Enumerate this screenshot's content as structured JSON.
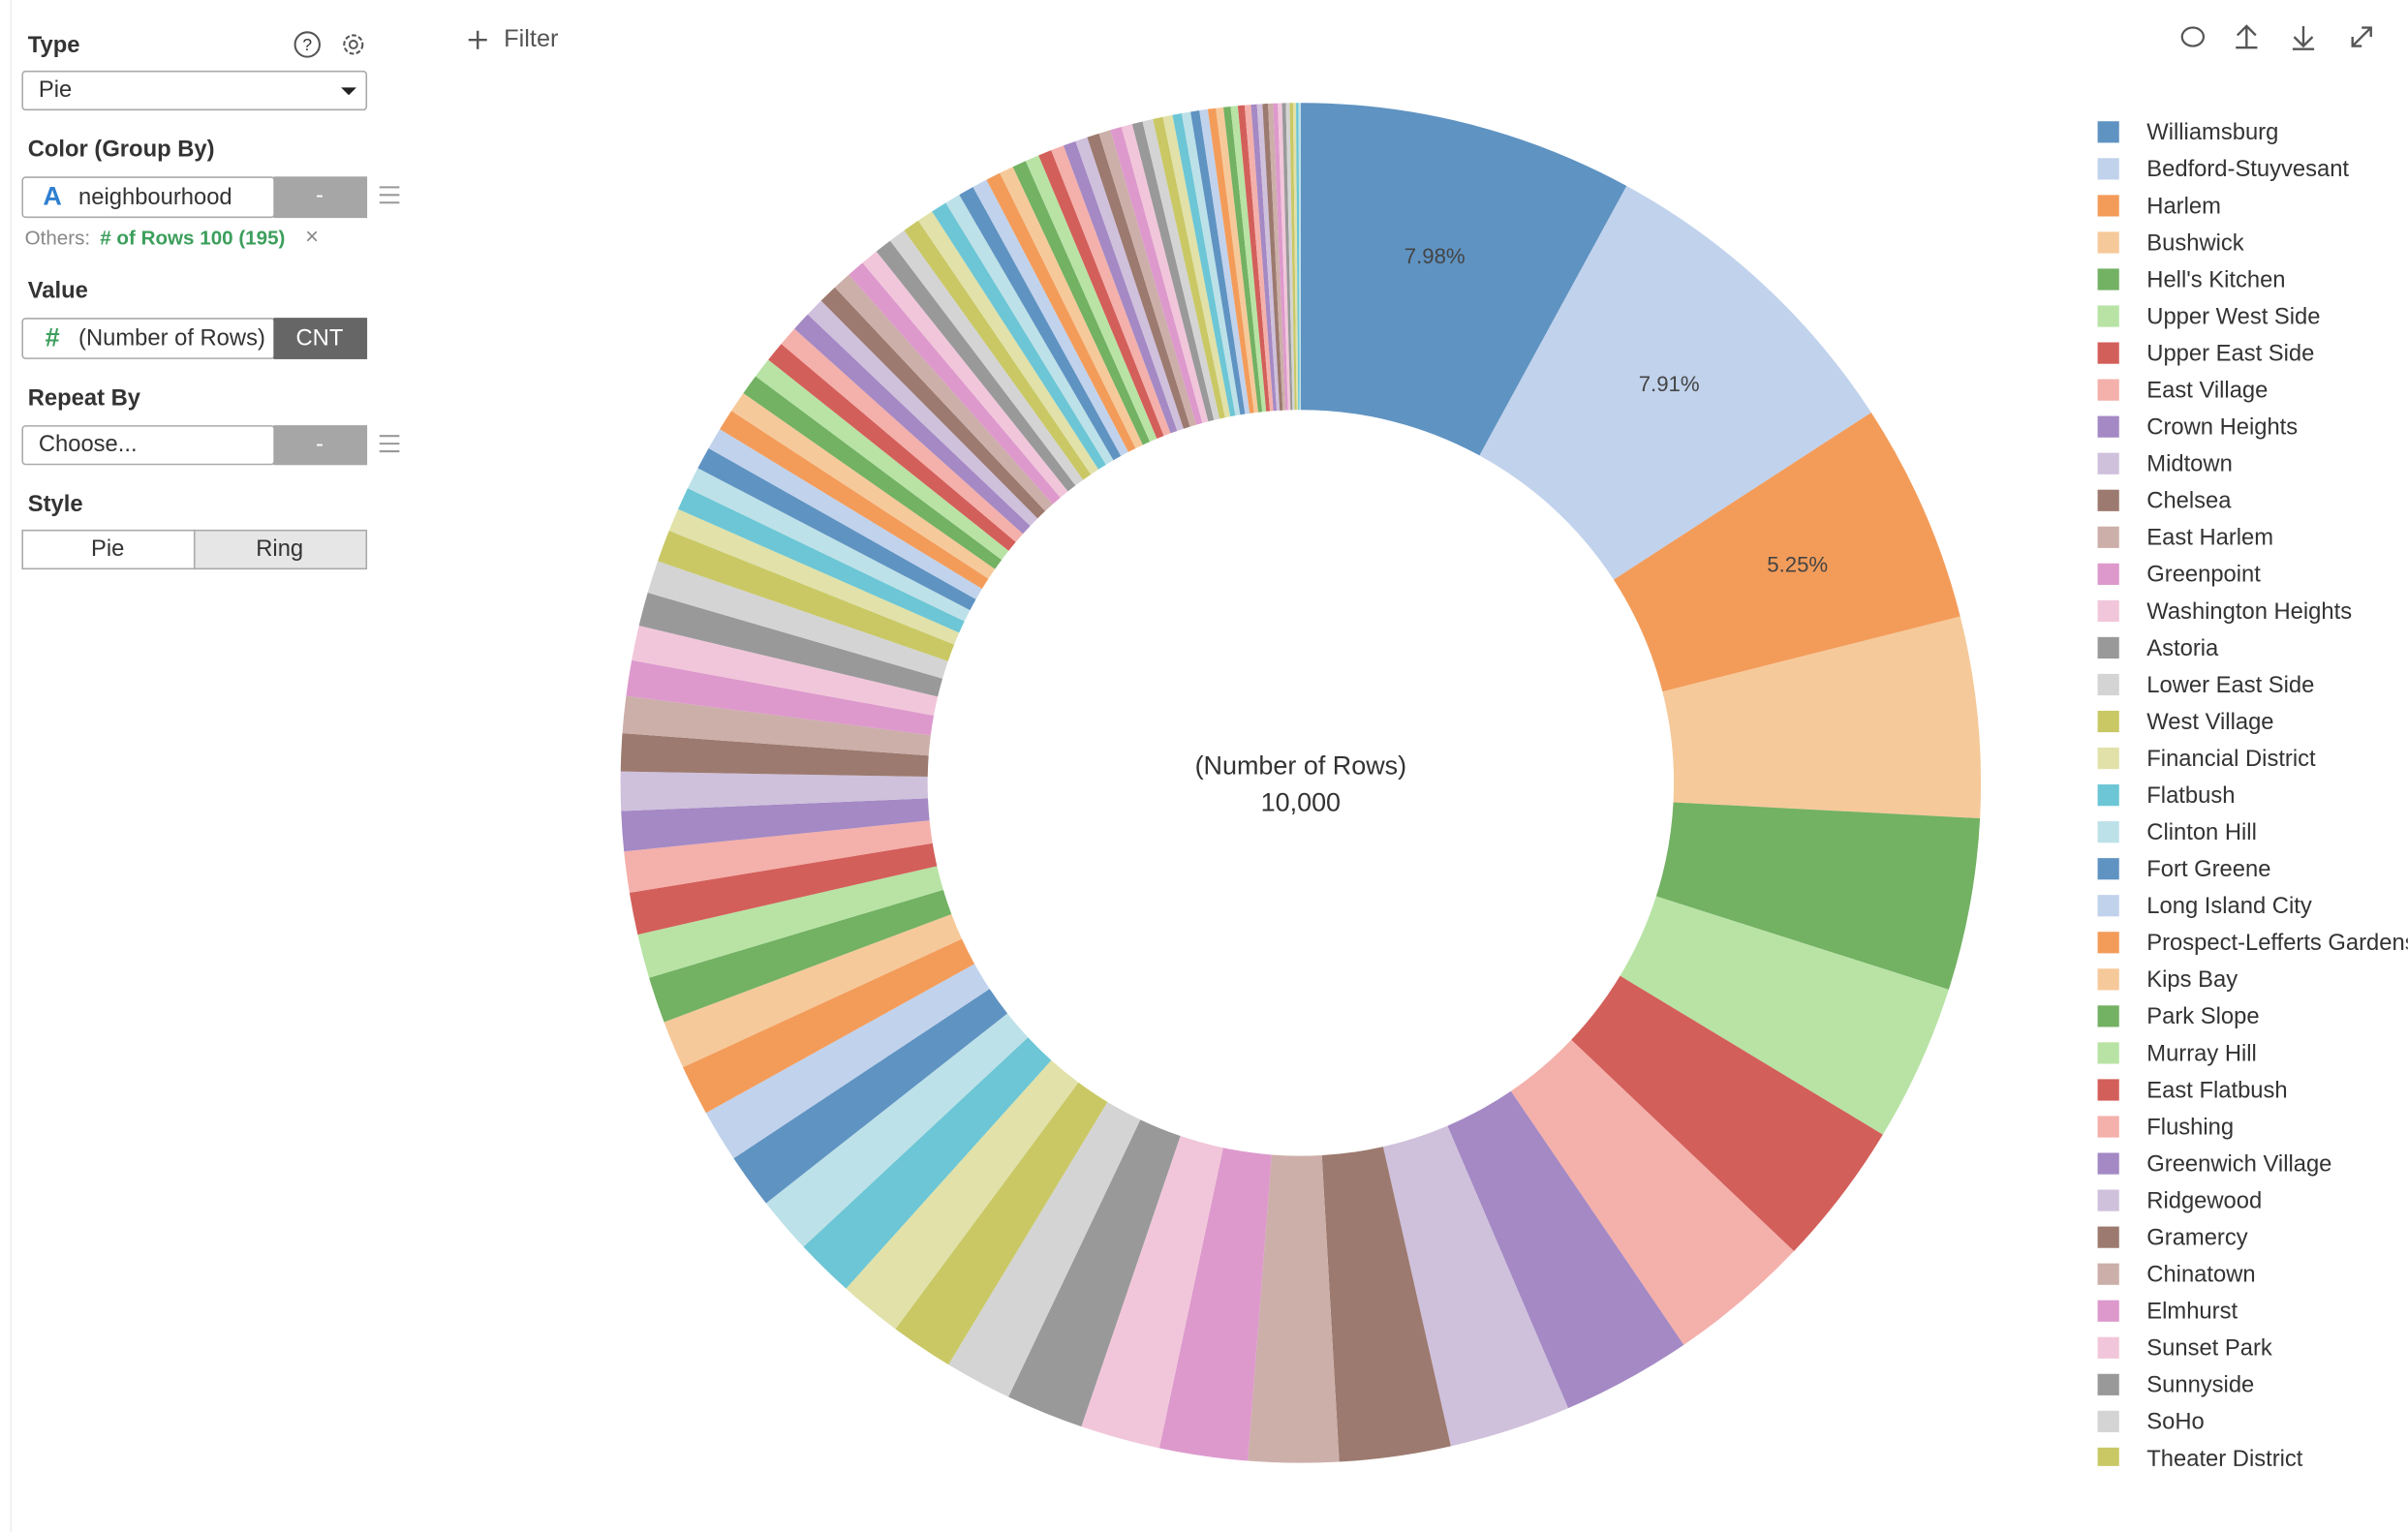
{
  "sidebar": {
    "type_label": "Type",
    "help_icon": "?",
    "type_value": "Pie",
    "color_label": "Color (Group By)",
    "color_field_icon": "A",
    "color_field": "neighbourhood",
    "color_option": "-",
    "others_label": "Others:",
    "others_value": "# of Rows 100 (195)",
    "others_clear": "×",
    "value_label": "Value",
    "value_field_icon": "#",
    "value_field": "(Number of Rows)",
    "value_agg": "CNT",
    "repeat_label": "Repeat By",
    "repeat_value": "Choose...",
    "repeat_option": "-",
    "style_label": "Style",
    "style_options": [
      "Pie",
      "Ring"
    ]
  },
  "toolbar": {
    "filter": "Filter"
  },
  "chart_data": {
    "type": "pie",
    "donut": true,
    "center_label": "(Number of Rows)",
    "center_value": "10,000",
    "categories": [
      "Williamsburg",
      "Bedford-Stuyvesant",
      "Harlem",
      "Bushwick",
      "Hell's Kitchen",
      "Upper West Side",
      "Upper East Side",
      "East Village",
      "Crown Heights",
      "Midtown",
      "Chelsea",
      "East Harlem",
      "Greenpoint",
      "Washington Heights",
      "Astoria",
      "Lower East Side",
      "West Village",
      "Financial District",
      "Flatbush",
      "Clinton Hill",
      "Fort Greene",
      "Long Island City",
      "Prospect-Lefferts Gardens",
      "Kips Bay",
      "Park Slope",
      "Murray Hill",
      "East Flatbush",
      "Flushing",
      "Greenwich Village",
      "Ridgewood",
      "Gramercy",
      "Chinatown",
      "Elmhurst",
      "Sunset Park",
      "Sunnyside",
      "SoHo",
      "Theater District",
      null,
      null,
      null,
      null,
      null,
      null,
      null,
      null,
      null,
      null,
      null,
      null,
      null,
      null,
      null,
      null,
      null,
      null,
      null,
      null,
      null,
      null,
      null,
      null,
      null,
      null,
      null,
      null,
      null,
      null,
      null,
      null,
      null,
      null,
      null,
      null,
      null,
      null,
      null,
      null,
      null,
      null,
      null,
      null,
      null,
      null,
      null,
      null,
      null,
      null,
      null,
      null,
      null,
      null,
      null,
      null,
      null,
      null,
      null,
      null,
      null,
      null,
      null
    ],
    "values": [
      7.98,
      7.91,
      5.25,
      4.78,
      4.1,
      3.75,
      3.45,
      3.4,
      3.1,
      2.9,
      2.65,
      2.15,
      2.1,
      1.9,
      1.85,
      1.6,
      1.5,
      1.5,
      1.4,
      1.35,
      1.3,
      1.25,
      1.2,
      1.15,
      1.1,
      1.05,
      1.0,
      0.98,
      0.95,
      0.93,
      0.9,
      0.88,
      0.85,
      0.83,
      0.8,
      0.78,
      0.76,
      0.55,
      0.54,
      0.53,
      0.53,
      0.52,
      0.51,
      0.5,
      0.49,
      0.49,
      0.48,
      0.47,
      0.46,
      0.45,
      0.45,
      0.44,
      0.43,
      0.42,
      0.41,
      0.41,
      0.4,
      0.39,
      0.38,
      0.37,
      0.37,
      0.36,
      0.35,
      0.34,
      0.33,
      0.33,
      0.32,
      0.31,
      0.3,
      0.29,
      0.29,
      0.28,
      0.27,
      0.26,
      0.25,
      0.25,
      0.24,
      0.23,
      0.22,
      0.21,
      0.21,
      0.2,
      0.19,
      0.18,
      0.17,
      0.17,
      0.16,
      0.15,
      0.14,
      0.13,
      0.13,
      0.12,
      0.11,
      0.1,
      0.09,
      0.09,
      0.08,
      0.07,
      0.06,
      0.05
    ],
    "value_labels": [
      "7.98%",
      "7.91%",
      "5.25%",
      null,
      null,
      null,
      null,
      null,
      null,
      null,
      null,
      null,
      null,
      null,
      null,
      null,
      null,
      null,
      null,
      null,
      null,
      null,
      null,
      null,
      null,
      null,
      null,
      null,
      null,
      null,
      null,
      null,
      null,
      null,
      null,
      null,
      null,
      null,
      null,
      null,
      null,
      null,
      null,
      null,
      null,
      null,
      null,
      null,
      null,
      null,
      null,
      null,
      null,
      null,
      null,
      null,
      null,
      null,
      null,
      null,
      null,
      null,
      null,
      null,
      null,
      null,
      null,
      null,
      null,
      null,
      null,
      null,
      null,
      null,
      null,
      null,
      null,
      null,
      null,
      null,
      null,
      null,
      null,
      null,
      null,
      null,
      null,
      null,
      null,
      null,
      null,
      null,
      null,
      null,
      null,
      null,
      null,
      null,
      null,
      null
    ],
    "colors": [
      "#5f93c2",
      "#c1d2ec",
      "#f39c5a",
      "#f6c99a",
      "#73b163",
      "#b8e3a5",
      "#d35f5a",
      "#f4b0ab",
      "#a489c4",
      "#cfc0dc",
      "#9c7a6f",
      "#ccafa9",
      "#dd99cc",
      "#f1c6da",
      "#999999",
      "#d4d4d4",
      "#c9c865",
      "#e1e1a9",
      "#6cc6d5",
      "#bde1e8"
    ],
    "legend": "right"
  }
}
